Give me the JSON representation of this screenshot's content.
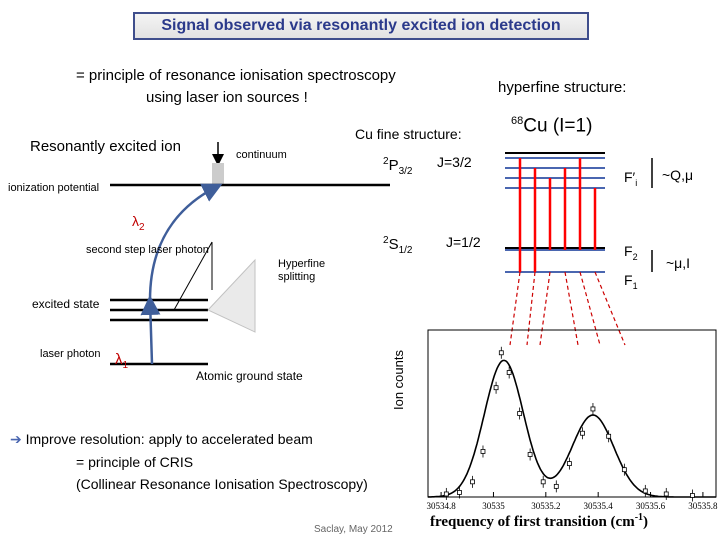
{
  "title": "Signal observed via resonantly excited ion detection",
  "intro": {
    "line1": "= principle of resonance ionisation spectroscopy",
    "line2": "using laser ion sources !"
  },
  "scheme": {
    "heading": "Resonantly excited ion",
    "continuum": "continuum",
    "ionization": "ionization potential",
    "lambda2": "λ2",
    "second_step": "second step laser photon",
    "hyperfine_splitting": "Hyperfine splitting",
    "excited_state": "excited state",
    "laser_photon": "laser photon",
    "lambda1": "λ1",
    "ground_state": "Atomic ground state"
  },
  "fine": {
    "heading": "Cu fine structure:",
    "p_level": "2P3/2",
    "p_j": "J=3/2",
    "s_level": "2S1/2",
    "s_j": "J=1/2"
  },
  "hyperfine": {
    "heading": "hyperfine structure:",
    "isotope": "68Cu (I=1)",
    "f_prime": "F′i",
    "f2": "F2",
    "f1": "F1",
    "upper_label": "~Q,μ",
    "lower_label": "~μ,I"
  },
  "improve": {
    "line1": "Improve resolution: apply to accelerated beam",
    "line2": "= principle of CRIS",
    "line3": "(Collinear Resonance Ionisation Spectroscopy)"
  },
  "footer": "Saclay, May 2012",
  "chart_data": {
    "type": "scatter",
    "ylabel": "Ion counts",
    "xlabel": "frequency of first transition (cm-1)",
    "x_ticks": [
      "30534.8",
      "30535",
      "30535.2",
      "30535.4",
      "30535.6",
      "30535.8"
    ],
    "xlim": [
      30534.75,
      30535.85
    ],
    "ylim": [
      0,
      1.1
    ],
    "points": [
      {
        "x": 30534.82,
        "y": 0.02
      },
      {
        "x": 30534.87,
        "y": 0.03
      },
      {
        "x": 30534.92,
        "y": 0.1
      },
      {
        "x": 30534.96,
        "y": 0.3
      },
      {
        "x": 30535.01,
        "y": 0.72
      },
      {
        "x": 30535.03,
        "y": 0.95
      },
      {
        "x": 30535.06,
        "y": 0.82
      },
      {
        "x": 30535.1,
        "y": 0.55
      },
      {
        "x": 30535.14,
        "y": 0.28
      },
      {
        "x": 30535.19,
        "y": 0.1
      },
      {
        "x": 30535.24,
        "y": 0.07
      },
      {
        "x": 30535.29,
        "y": 0.22
      },
      {
        "x": 30535.34,
        "y": 0.42
      },
      {
        "x": 30535.38,
        "y": 0.58
      },
      {
        "x": 30535.44,
        "y": 0.4
      },
      {
        "x": 30535.5,
        "y": 0.18
      },
      {
        "x": 30535.58,
        "y": 0.04
      },
      {
        "x": 30535.66,
        "y": 0.02
      },
      {
        "x": 30535.76,
        "y": 0.01
      }
    ],
    "fit": {
      "peaks": [
        {
          "center": 30535.04,
          "height": 0.9,
          "width": 0.075
        },
        {
          "center": 30535.38,
          "height": 0.54,
          "width": 0.08
        }
      ]
    }
  },
  "colors": {
    "title_text": "#2b3a8b",
    "title_border": "#3f4e8c",
    "laser": "#ff0000",
    "level": "#4a66b0",
    "greek": "#c00000",
    "arrow": "#3f5e9a"
  }
}
